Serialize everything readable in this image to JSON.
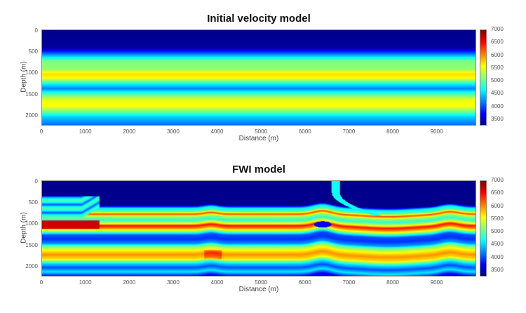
{
  "chart_data": [
    {
      "type": "heatmap",
      "title": "Initial velocity model",
      "xlabel": "Distance (m)",
      "ylabel": "Depth (m)",
      "xlim": [
        0,
        9900
      ],
      "ylim": [
        2200,
        0
      ],
      "xticks": [
        0,
        1000,
        2000,
        3000,
        4000,
        5000,
        6000,
        7000,
        8000,
        9000
      ],
      "yticks": [
        0,
        500,
        1000,
        1500,
        2000
      ],
      "colormap": "jet",
      "clim": [
        3250,
        7000
      ],
      "colorbar_ticks": [
        3500,
        4000,
        4500,
        5000,
        5500,
        6000,
        6500,
        7000
      ],
      "velocity_profile": {
        "depth": [
          0,
          400,
          550,
          700,
          900,
          1000,
          1100,
          1250,
          1350,
          1450,
          1600,
          1750,
          1900,
          2000,
          2200
        ],
        "velocity": [
          3300,
          3350,
          4200,
          5100,
          5200,
          5700,
          5600,
          4600,
          4200,
          4800,
          5500,
          5600,
          5000,
          4500,
          4100
        ]
      }
    },
    {
      "type": "heatmap",
      "title": "FWI model",
      "xlabel": "Distance (m)",
      "ylabel": "Depth (m)",
      "xlim": [
        0,
        9900
      ],
      "ylim": [
        2200,
        0
      ],
      "xticks": [
        0,
        1000,
        2000,
        3000,
        4000,
        5000,
        6000,
        7000,
        8000,
        9000
      ],
      "yticks": [
        0,
        500,
        1000,
        1500,
        2000
      ],
      "colormap": "jet",
      "clim": [
        3250,
        7000
      ],
      "colorbar_ticks": [
        3500,
        4000,
        4500,
        5000,
        5500,
        6000,
        6500,
        7000
      ],
      "velocity_profile": {
        "depth": [
          0,
          560,
          620,
          700,
          760,
          820,
          900,
          980,
          1030,
          1090,
          1160,
          1250,
          1350,
          1450,
          1500,
          1600,
          1700,
          1800,
          1900,
          2000,
          2100,
          2200
        ],
        "velocity": [
          3300,
          3300,
          4600,
          5000,
          6300,
          5200,
          4800,
          5600,
          6500,
          6000,
          5200,
          4000,
          3900,
          4300,
          5000,
          5600,
          6000,
          5700,
          4600,
          4000,
          4600,
          3700
        ]
      }
    }
  ]
}
